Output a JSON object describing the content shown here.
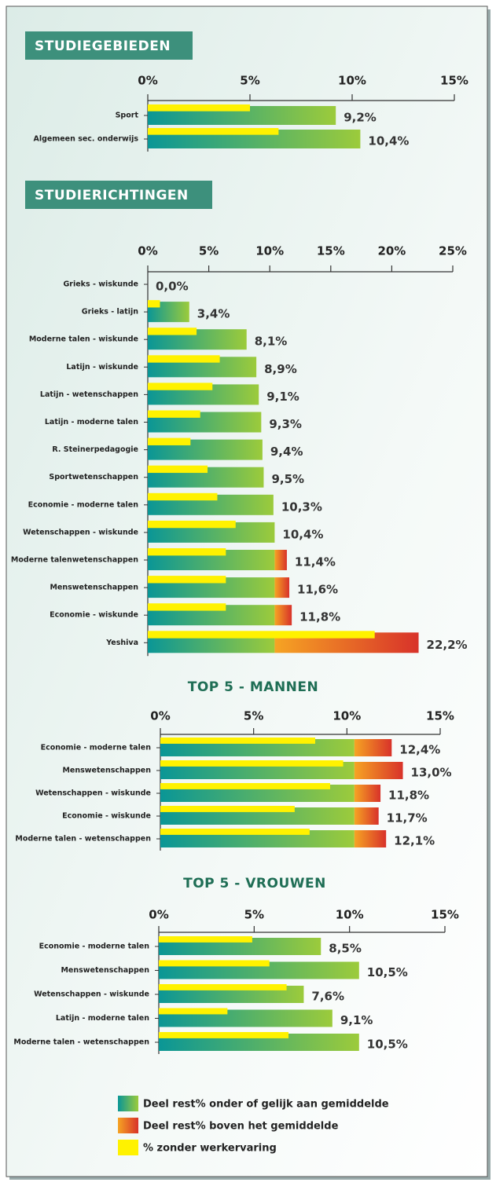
{
  "legend": [
    {
      "name": "Deel rest% onder of gelijk aan gemiddelde",
      "color": [
        "#0a9696",
        "#9ccb3b"
      ]
    },
    {
      "name": "Deel rest% boven het gemiddelde",
      "color": [
        "#f6a423",
        "#d8322a"
      ]
    },
    {
      "name": "% zonder werkervaring",
      "color": [
        "#fff200",
        "#fff200"
      ]
    }
  ],
  "chart_data": [
    {
      "type": "bar",
      "title": "STUDIEGEBIEDEN",
      "title_style": "box",
      "categories": [
        "Sport",
        "Algemeen sec. onderwijs"
      ],
      "values": [
        9.2,
        10.4
      ],
      "value_labels": [
        "9,2%",
        "10,4%"
      ],
      "series": [
        {
          "values": [
            9.2,
            10.4
          ]
        },
        {
          "values": [
            0,
            0
          ]
        },
        {
          "values": [
            5.0,
            6.4
          ]
        }
      ],
      "xlim": [
        0,
        15
      ],
      "xticks": [
        {
          "value": 0,
          "label": "0%"
        },
        {
          "value": 5,
          "label": "5%"
        },
        {
          "value": 10,
          "label": "10%"
        },
        {
          "value": 15,
          "label": "15%"
        }
      ]
    },
    {
      "type": "bar",
      "title": "STUDIERICHTINGEN",
      "title_style": "box",
      "categories": [
        "Grieks - wiskunde",
        "Grieks - latijn",
        "Moderne talen - wiskunde",
        "Latijn - wiskunde",
        "Latijn - wetenschappen",
        "Latijn - moderne talen",
        "R. Steinerpedagogie",
        "Sportwetenschappen",
        "Economie - moderne talen",
        "Wetenschappen - wiskunde",
        "Moderne talenwetenschappen",
        "Menswetenschappen",
        "Economie - wiskunde",
        "Yeshiva"
      ],
      "values": [
        0.0,
        3.4,
        8.1,
        8.9,
        9.1,
        9.3,
        9.4,
        9.5,
        10.3,
        10.4,
        11.4,
        11.6,
        11.8,
        22.2
      ],
      "value_labels": [
        "0,0%",
        "3,4%",
        "8,1%",
        "8,9%",
        "9,1%",
        "9,3%",
        "9,4%",
        "9,5%",
        "10,3%",
        "10,4%",
        "11,4%",
        "11,6%",
        "11,8%",
        "22,2%"
      ],
      "series": [
        {
          "values": [
            0.0,
            3.4,
            8.1,
            8.9,
            9.1,
            9.3,
            9.4,
            9.5,
            10.3,
            10.4,
            10.4,
            10.4,
            10.4,
            10.4
          ]
        },
        {
          "values": [
            0,
            0,
            0,
            0,
            0,
            0,
            0,
            0,
            0,
            0,
            1.0,
            1.2,
            1.4,
            11.8
          ]
        },
        {
          "values": [
            0,
            1.0,
            4.0,
            5.9,
            5.3,
            4.3,
            3.5,
            4.9,
            5.7,
            7.2,
            6.4,
            6.4,
            6.4,
            18.6
          ]
        }
      ],
      "xlim": [
        0,
        25
      ],
      "xticks": [
        {
          "value": 0,
          "label": "0%"
        },
        {
          "value": 5,
          "label": "5%"
        },
        {
          "value": 10,
          "label": "10%"
        },
        {
          "value": 15,
          "label": "15%"
        },
        {
          "value": 20,
          "label": "20%"
        },
        {
          "value": 25,
          "label": "25%"
        }
      ]
    },
    {
      "type": "bar",
      "title": "TOP 5 - MANNEN",
      "title_style": "plain",
      "categories": [
        "Economie - moderne talen",
        "Menswetenschappen",
        "Wetenschappen - wiskunde",
        "Economie - wiskunde",
        "Moderne talen - wetenschappen"
      ],
      "values": [
        12.4,
        13.0,
        11.8,
        11.7,
        12.1
      ],
      "value_labels": [
        "12,4%",
        "13,0%",
        "11,8%",
        "11,7%",
        "12,1%"
      ],
      "series": [
        {
          "values": [
            10.4,
            10.4,
            10.4,
            10.4,
            10.4
          ]
        },
        {
          "values": [
            2.0,
            2.6,
            1.4,
            1.3,
            1.7
          ]
        },
        {
          "values": [
            8.3,
            9.8,
            9.1,
            7.2,
            8.0
          ]
        }
      ],
      "xlim": [
        0,
        15
      ],
      "xticks": [
        {
          "value": 0,
          "label": "0%"
        },
        {
          "value": 5,
          "label": "5%"
        },
        {
          "value": 10,
          "label": "10%"
        },
        {
          "value": 15,
          "label": "15%"
        }
      ]
    },
    {
      "type": "bar",
      "title": "TOP 5 - VROUWEN",
      "title_style": "plain",
      "categories": [
        "Economie - moderne talen",
        "Menswetenschappen",
        "Wetenschappen - wiskunde",
        "Latijn - moderne talen",
        "Moderne talen - wetenschappen"
      ],
      "values": [
        8.5,
        10.5,
        7.6,
        9.1,
        10.5
      ],
      "value_labels": [
        "8,5%",
        "10,5%",
        "7,6%",
        "9,1%",
        "10,5%"
      ],
      "series": [
        {
          "values": [
            8.5,
            10.5,
            7.6,
            9.1,
            10.5
          ]
        },
        {
          "values": [
            0,
            0,
            0,
            0,
            0
          ]
        },
        {
          "values": [
            4.9,
            5.8,
            6.7,
            3.6,
            6.8
          ]
        }
      ],
      "xlim": [
        0,
        15
      ],
      "xticks": [
        {
          "value": 0,
          "label": "0%"
        },
        {
          "value": 5,
          "label": "5%"
        },
        {
          "value": 10,
          "label": "10%"
        },
        {
          "value": 15,
          "label": "15%"
        }
      ]
    }
  ]
}
